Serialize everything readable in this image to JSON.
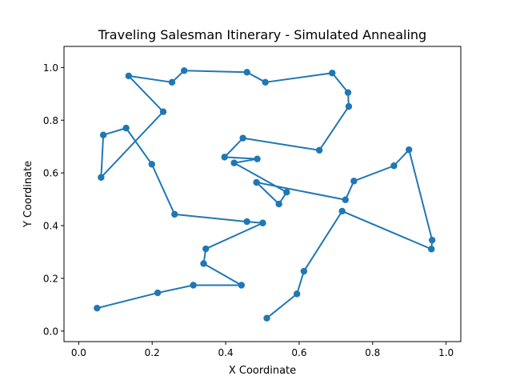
{
  "chart_data": {
    "type": "line",
    "title": "Traveling Salesman Itinerary - Simulated Annealing",
    "xlabel": "X Coordinate",
    "ylabel": "Y Coordinate",
    "xlim": [
      -0.04,
      1.04
    ],
    "ylim": [
      -0.04,
      1.08
    ],
    "xticks": [
      "0.0",
      "0.2",
      "0.4",
      "0.6",
      "0.8",
      "1.0"
    ],
    "yticks": [
      "0.0",
      "0.2",
      "0.4",
      "0.6",
      "0.8",
      "1.0"
    ],
    "grid": false,
    "line_color": "#1f77b4",
    "series": [
      {
        "x": [
          0.512,
          0.594,
          0.613,
          0.717,
          0.96,
          0.962,
          0.899,
          0.858,
          0.749,
          0.726,
          0.484,
          0.545,
          0.566,
          0.423,
          0.486,
          0.397,
          0.447,
          0.655,
          0.735,
          0.733,
          0.69,
          0.508,
          0.458,
          0.287,
          0.254,
          0.136,
          0.23,
          0.061,
          0.067,
          0.129,
          0.199,
          0.261,
          0.458,
          0.501,
          0.346,
          0.34,
          0.443,
          0.312,
          0.215,
          0.05
        ],
        "y": [
          0.049,
          0.141,
          0.227,
          0.455,
          0.311,
          0.345,
          0.688,
          0.627,
          0.569,
          0.498,
          0.564,
          0.482,
          0.527,
          0.638,
          0.653,
          0.66,
          0.732,
          0.686,
          0.852,
          0.905,
          0.979,
          0.944,
          0.982,
          0.988,
          0.944,
          0.968,
          0.832,
          0.583,
          0.744,
          0.77,
          0.633,
          0.443,
          0.415,
          0.41,
          0.312,
          0.256,
          0.174,
          0.174,
          0.145,
          0.087
        ]
      }
    ]
  }
}
